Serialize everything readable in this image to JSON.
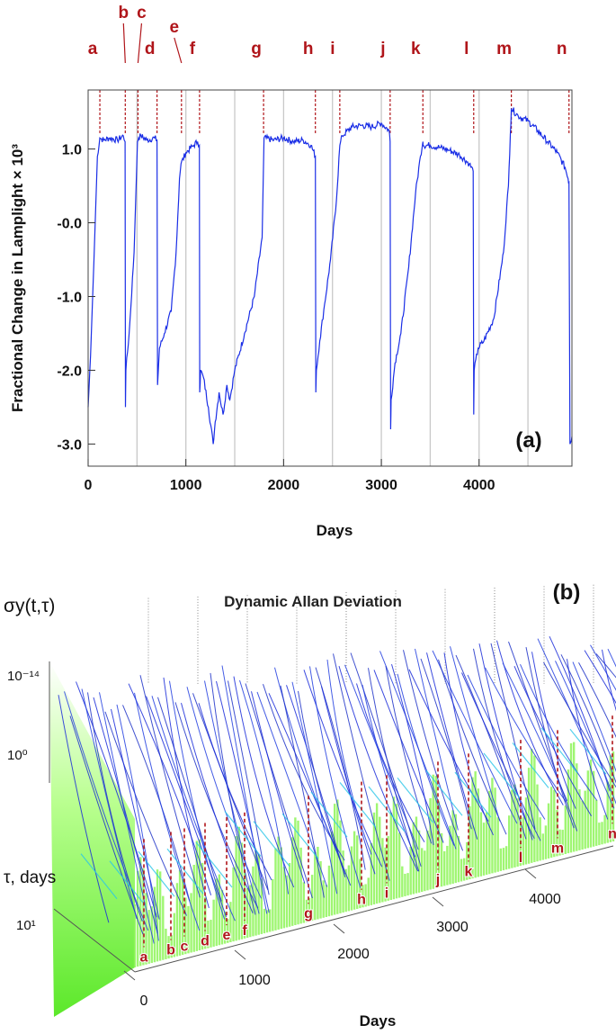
{
  "chart_data": [
    {
      "panel_label": "(a)",
      "type": "line",
      "xlabel": "Days",
      "ylabel": "Fractional Change in Lamplight × 10³",
      "xlim": [
        0,
        4950
      ],
      "ylim": [
        -3.3,
        1.8
      ],
      "x_ticks": [
        0,
        1000,
        2000,
        3000,
        4000
      ],
      "x_tick_labels": [
        "0",
        "1000",
        "2000",
        "3000",
        "4000"
      ],
      "y_ticks": [
        1.0,
        0.0,
        -1.0,
        -2.0,
        -3.0
      ],
      "y_tick_labels": [
        "1.0",
        "-0.0",
        "-1.0",
        "-2.0",
        "-3.0"
      ],
      "vertical_grid_x": [
        500,
        1000,
        1500,
        2000,
        2500,
        3000,
        3500,
        4000,
        4500
      ],
      "event_markers": [
        {
          "label": "a",
          "x": 120
        },
        {
          "label": "b",
          "x": 380
        },
        {
          "label": "c",
          "x": 510
        },
        {
          "label": "d",
          "x": 705
        },
        {
          "label": "e",
          "x": 955
        },
        {
          "label": "f",
          "x": 1140
        },
        {
          "label": "g",
          "x": 1795
        },
        {
          "label": "h",
          "x": 2325
        },
        {
          "label": "i",
          "x": 2575
        },
        {
          "label": "j",
          "x": 3090
        },
        {
          "label": "k",
          "x": 3425
        },
        {
          "label": "l",
          "x": 3945
        },
        {
          "label": "m",
          "x": 4330
        },
        {
          "label": "n",
          "x": 4920
        }
      ],
      "series": [
        {
          "color": "#1a2ee6",
          "x": [
            0,
            25,
            60,
            95,
            120,
            160,
            220,
            300,
            360,
            378,
            382,
            386,
            420,
            470,
            505,
            515,
            540,
            600,
            680,
            705,
            710,
            730,
            780,
            850,
            900,
            935,
            950,
            1000,
            1080,
            1120,
            1138,
            1142,
            1150,
            1180,
            1230,
            1280,
            1300,
            1340,
            1380,
            1420,
            1450,
            1500,
            1600,
            1700,
            1780,
            1800,
            1900,
            2000,
            2100,
            2200,
            2280,
            2325,
            2330,
            2335,
            2370,
            2420,
            2480,
            2540,
            2575,
            2600,
            2700,
            2800,
            2900,
            3000,
            3080,
            3090,
            3095,
            3100,
            3140,
            3200,
            3280,
            3350,
            3400,
            3425,
            3430,
            3500,
            3600,
            3700,
            3800,
            3900,
            3940,
            3945,
            3950,
            3990,
            4050,
            4150,
            4250,
            4300,
            4320,
            4330,
            4400,
            4500,
            4600,
            4700,
            4800,
            4880,
            4910,
            4920,
            4930,
            4950
          ],
          "y": [
            -2.5,
            -1.8,
            -0.5,
            0.9,
            1.15,
            1.12,
            1.15,
            1.12,
            1.18,
            1.1,
            -2.5,
            -2.0,
            -1.5,
            -0.4,
            1.1,
            1.15,
            1.18,
            1.12,
            1.15,
            1.12,
            -2.2,
            -1.7,
            -1.5,
            -1.2,
            -0.4,
            0.6,
            0.8,
            0.95,
            1.05,
            1.1,
            1.05,
            -2.3,
            -2.0,
            -2.1,
            -2.5,
            -3.0,
            -2.7,
            -2.3,
            -2.6,
            -2.2,
            -2.4,
            -2.0,
            -1.5,
            -1.0,
            -0.2,
            1.15,
            1.12,
            1.15,
            1.1,
            1.12,
            1.05,
            0.9,
            -2.3,
            -2.0,
            -1.6,
            -1.1,
            -0.5,
            0.3,
            1.05,
            1.18,
            1.3,
            1.32,
            1.3,
            1.35,
            1.25,
            1.1,
            -2.8,
            -2.4,
            -1.9,
            -1.5,
            -0.6,
            0.4,
            0.9,
            1.1,
            1.05,
            1.05,
            1.02,
            0.98,
            0.92,
            0.8,
            0.7,
            -2.6,
            -2.0,
            -1.7,
            -1.6,
            -1.3,
            -0.4,
            0.5,
            1.2,
            1.55,
            1.45,
            1.38,
            1.25,
            1.1,
            0.95,
            0.75,
            0.6,
            0.55,
            -3.0,
            -2.9
          ]
        }
      ]
    },
    {
      "panel_label": "(b)",
      "type": "surface3d",
      "title": "Dynamic Allan Deviation",
      "zlabel": "σy(t,τ)",
      "z_tick_labels": [
        "10⁻¹⁴",
        "10⁰"
      ],
      "ylabel": "τ, days",
      "y_tick_labels": [
        "10¹"
      ],
      "xlabel": "Days",
      "x_ticks": [
        0,
        1000,
        2000,
        3000,
        4000
      ],
      "x_tick_labels": [
        "0",
        "1000",
        "2000",
        "3000",
        "4000"
      ],
      "event_markers": [
        "a",
        "b",
        "c",
        "d",
        "e",
        "f",
        "g",
        "h",
        "i",
        "j",
        "k",
        "l",
        "m",
        "n"
      ],
      "colors": {
        "surface_low": "#7dff3a",
        "surface_high": "#1a2bd9",
        "mid": "#29c6e8",
        "marker": "#b0151a"
      }
    }
  ]
}
